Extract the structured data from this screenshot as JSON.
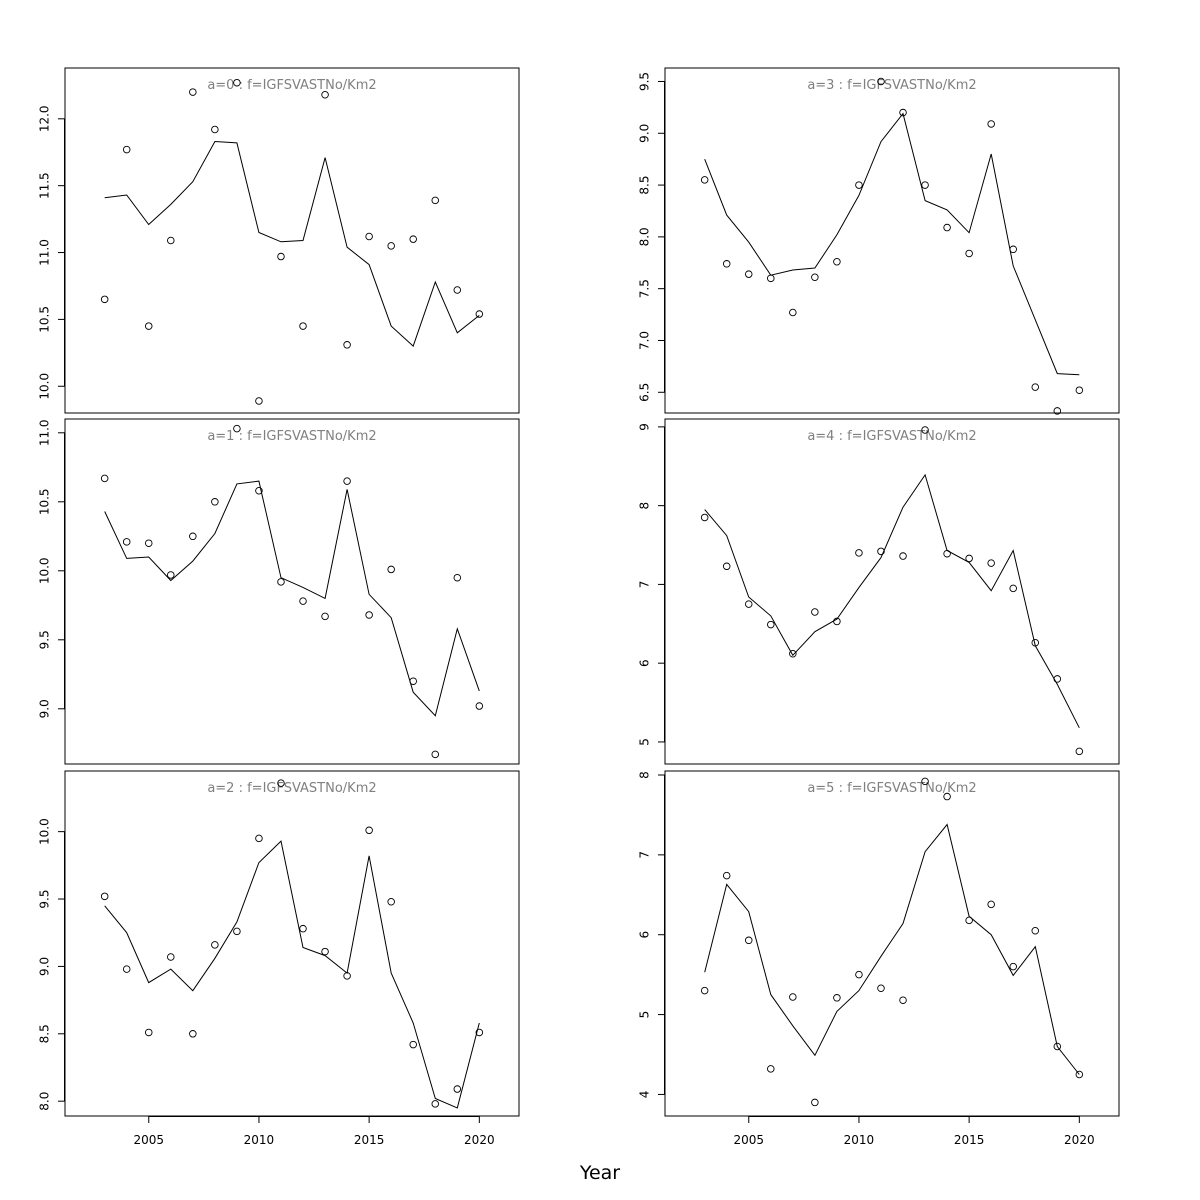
{
  "figure": {
    "xlabel": "Year"
  },
  "chart_data": [
    {
      "type": "scatter",
      "title": "a=0 : f=IGFSVASTNo/Km2",
      "x": [
        2003,
        2004,
        2005,
        2006,
        2007,
        2008,
        2009,
        2010,
        2011,
        2012,
        2013,
        2014,
        2015,
        2016,
        2017,
        2018,
        2019,
        2020
      ],
      "points": [
        10.65,
        11.77,
        10.45,
        11.09,
        12.2,
        11.92,
        12.27,
        9.89,
        10.97,
        10.45,
        12.18,
        10.31,
        11.12,
        11.05,
        11.1,
        11.39,
        10.72,
        10.54
      ],
      "fitted": [
        11.41,
        11.43,
        11.21,
        11.36,
        11.53,
        11.83,
        11.82,
        11.15,
        11.08,
        11.09,
        11.71,
        11.04,
        10.91,
        10.45,
        10.3,
        10.78,
        10.4,
        10.53
      ],
      "xlim": [
        2001.2,
        2021.8
      ],
      "ylim": [
        9.8,
        12.38
      ],
      "yticks": [
        "10.0",
        "10.5",
        "11.0",
        "11.5",
        "12.0"
      ],
      "xticks": []
    },
    {
      "type": "scatter",
      "title": "a=3 : f=IGFSVASTNo/Km2",
      "x": [
        2003,
        2004,
        2005,
        2006,
        2007,
        2008,
        2009,
        2010,
        2011,
        2012,
        2013,
        2014,
        2015,
        2016,
        2017,
        2018,
        2019,
        2020
      ],
      "points": [
        8.55,
        7.74,
        7.64,
        7.6,
        7.27,
        7.61,
        7.76,
        8.5,
        9.5,
        9.2,
        8.5,
        8.09,
        7.84,
        9.09,
        7.88,
        6.55,
        6.32,
        6.52
      ],
      "fitted": [
        8.75,
        8.21,
        7.95,
        7.63,
        7.68,
        7.7,
        8.02,
        8.4,
        8.92,
        9.19,
        8.35,
        8.26,
        8.04,
        8.8,
        7.72,
        7.2,
        6.68,
        6.67
      ],
      "xlim": [
        2001.2,
        2021.8
      ],
      "ylim": [
        6.3,
        9.63
      ],
      "yticks": [
        "6.5",
        "7.0",
        "7.5",
        "8.0",
        "8.5",
        "9.0",
        "9.5"
      ],
      "xticks": []
    },
    {
      "type": "scatter",
      "title": "a=1 : f=IGFSVASTNo/Km2",
      "x": [
        2003,
        2004,
        2005,
        2006,
        2007,
        2008,
        2009,
        2010,
        2011,
        2012,
        2013,
        2014,
        2015,
        2016,
        2017,
        2018,
        2019,
        2020
      ],
      "points": [
        10.67,
        10.21,
        10.2,
        9.97,
        10.25,
        10.5,
        11.03,
        10.58,
        9.92,
        9.78,
        9.67,
        10.65,
        9.68,
        10.01,
        9.2,
        8.67,
        9.95,
        9.02
      ],
      "fitted": [
        10.43,
        10.09,
        10.1,
        9.93,
        10.07,
        10.27,
        10.63,
        10.65,
        9.95,
        9.88,
        9.8,
        10.59,
        9.83,
        9.66,
        9.12,
        8.95,
        9.58,
        9.13
      ],
      "xlim": [
        2001.2,
        2021.8
      ],
      "ylim": [
        8.6,
        11.1
      ],
      "yticks": [
        "9.0",
        "9.5",
        "10.0",
        "10.5",
        "11.0"
      ],
      "xticks": []
    },
    {
      "type": "scatter",
      "title": "a=4 : f=IGFSVASTNo/Km2",
      "x": [
        2003,
        2004,
        2005,
        2006,
        2007,
        2008,
        2009,
        2010,
        2011,
        2012,
        2013,
        2014,
        2015,
        2016,
        2017,
        2018,
        2019,
        2020
      ],
      "points": [
        7.85,
        7.23,
        6.75,
        6.49,
        6.12,
        6.65,
        6.53,
        7.4,
        7.42,
        7.36,
        8.96,
        7.39,
        7.33,
        7.27,
        6.95,
        6.26,
        5.8,
        4.88
      ],
      "fitted": [
        7.95,
        7.62,
        6.84,
        6.6,
        6.1,
        6.4,
        6.56,
        6.96,
        7.34,
        7.98,
        8.39,
        7.43,
        7.28,
        6.92,
        7.43,
        6.22,
        5.73,
        5.18
      ],
      "xlim": [
        2001.2,
        2021.8
      ],
      "ylim": [
        4.72,
        9.1
      ],
      "yticks": [
        "5",
        "6",
        "7",
        "8",
        "9"
      ],
      "xticks": []
    },
    {
      "type": "scatter",
      "title": "a=2 : f=IGFSVASTNo/Km2",
      "x": [
        2003,
        2004,
        2005,
        2006,
        2007,
        2008,
        2009,
        2010,
        2011,
        2012,
        2013,
        2014,
        2015,
        2016,
        2017,
        2018,
        2019,
        2020
      ],
      "points": [
        9.52,
        8.98,
        8.51,
        9.07,
        8.5,
        9.16,
        9.26,
        9.95,
        10.36,
        9.28,
        9.11,
        8.93,
        10.01,
        9.48,
        8.42,
        7.98,
        8.09,
        8.51
      ],
      "fitted": [
        9.45,
        9.25,
        8.88,
        8.98,
        8.82,
        9.06,
        9.33,
        9.77,
        9.93,
        9.14,
        9.08,
        8.95,
        9.82,
        8.95,
        8.58,
        8.02,
        7.95,
        8.58
      ],
      "xlim": [
        2001.2,
        2021.8
      ],
      "ylim": [
        7.89,
        10.45
      ],
      "yticks": [
        "8.0",
        "8.5",
        "9.0",
        "9.5",
        "10.0"
      ],
      "xticks": [
        "2005",
        "2010",
        "2015",
        "2020"
      ]
    },
    {
      "type": "scatter",
      "title": "a=5 : f=IGFSVASTNo/Km2",
      "x": [
        2003,
        2004,
        2005,
        2006,
        2007,
        2008,
        2009,
        2010,
        2011,
        2012,
        2013,
        2014,
        2015,
        2016,
        2017,
        2018,
        2019,
        2020
      ],
      "points": [
        5.3,
        6.74,
        5.93,
        4.32,
        5.22,
        3.9,
        5.21,
        5.5,
        5.33,
        5.18,
        7.92,
        7.73,
        6.18,
        6.38,
        5.6,
        6.05,
        4.6,
        4.25
      ],
      "fitted": [
        5.53,
        6.63,
        6.29,
        5.25,
        4.86,
        4.49,
        5.04,
        5.3,
        5.73,
        6.14,
        7.04,
        7.38,
        6.23,
        6.0,
        5.49,
        5.85,
        4.6,
        4.25
      ],
      "xlim": [
        2001.2,
        2021.8
      ],
      "ylim": [
        3.73,
        8.05
      ],
      "yticks": [
        "4",
        "5",
        "6",
        "7",
        "8"
      ],
      "xticks": [
        "2005",
        "2010",
        "2015",
        "2020"
      ]
    }
  ]
}
